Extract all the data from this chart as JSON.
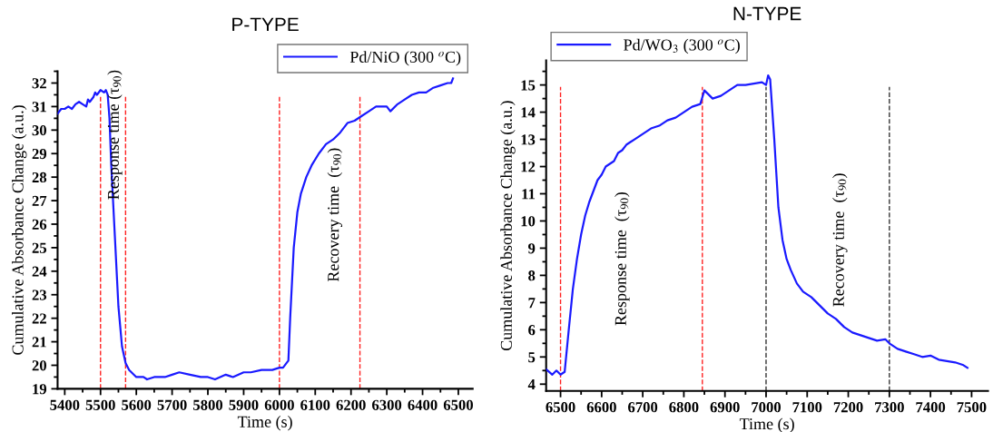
{
  "chart_data": [
    {
      "type": "line",
      "title": "P-TYPE",
      "xlabel": "Time (s)",
      "ylabel": "Cumulative Absorbance Change (a.u.)",
      "xlim": [
        5380,
        6540
      ],
      "xticks": [
        5400,
        5500,
        5600,
        5700,
        5800,
        5900,
        6000,
        6100,
        6200,
        6300,
        6400,
        6500
      ],
      "ylim": [
        19,
        32.5
      ],
      "yticks": [
        19,
        20,
        21,
        22,
        23,
        24,
        25,
        26,
        27,
        28,
        29,
        30,
        31,
        32
      ],
      "legend": "top right",
      "grid": false,
      "line_style": "solid",
      "marker": "none",
      "series": [
        {
          "name": "Pd/NiO (300 $^{o}$C)",
          "color": "#1a1aff",
          "x": [
            5380,
            5390,
            5400,
            5410,
            5420,
            5430,
            5440,
            5450,
            5460,
            5465,
            5470,
            5480,
            5485,
            5490,
            5500,
            5510,
            5515,
            5520,
            5525,
            5530,
            5540,
            5550,
            5560,
            5570,
            5580,
            5600,
            5620,
            5630,
            5650,
            5680,
            5700,
            5720,
            5750,
            5780,
            5800,
            5820,
            5850,
            5870,
            5900,
            5920,
            5950,
            5980,
            6000,
            6010,
            6020,
            6025,
            6030,
            6040,
            6050,
            6060,
            6075,
            6090,
            6110,
            6130,
            6150,
            6170,
            6190,
            6210,
            6230,
            6250,
            6270,
            6300,
            6310,
            6330,
            6350,
            6370,
            6390,
            6410,
            6430,
            6450,
            6470,
            6480,
            6485
          ],
          "values": [
            30.7,
            30.9,
            30.9,
            31.0,
            30.9,
            31.1,
            31.2,
            31.1,
            31.0,
            31.3,
            31.2,
            31.4,
            31.6,
            31.5,
            31.7,
            31.6,
            31.7,
            31.5,
            30.5,
            28.5,
            25.5,
            22.5,
            20.8,
            20.1,
            19.8,
            19.5,
            19.5,
            19.4,
            19.5,
            19.5,
            19.6,
            19.7,
            19.6,
            19.5,
            19.5,
            19.4,
            19.6,
            19.5,
            19.7,
            19.7,
            19.8,
            19.8,
            19.9,
            19.9,
            20.1,
            20.2,
            22.0,
            25.0,
            26.5,
            27.3,
            28.0,
            28.5,
            29.0,
            29.4,
            29.6,
            29.9,
            30.3,
            30.4,
            30.6,
            30.8,
            31.0,
            31.0,
            30.8,
            31.1,
            31.3,
            31.5,
            31.6,
            31.6,
            31.8,
            31.9,
            32.0,
            32.0,
            32.2
          ]
        }
      ],
      "ref_lines": [
        {
          "axis": "x",
          "value": 5500,
          "color": "#ff2020",
          "line_style": "dashed"
        },
        {
          "axis": "x",
          "value": 5570,
          "color": "#ff2020",
          "line_style": "dashed"
        },
        {
          "axis": "x",
          "value": 6000,
          "color": "#ff2020",
          "line_style": "dashed"
        },
        {
          "axis": "x",
          "value": 6225,
          "color": "#ff2020",
          "line_style": "dashed"
        }
      ],
      "annotations": [
        "Response time (τ$_{90}$)",
        "Recovery time  (τ$_{90}$)"
      ]
    },
    {
      "type": "line",
      "title": "N-TYPE",
      "xlabel": "Time (s)",
      "ylabel": "Cumulative Absorbance Change (a.u.)",
      "xlim": [
        6465,
        7540
      ],
      "xticks": [
        6500,
        6600,
        6700,
        6800,
        6900,
        7000,
        7100,
        7200,
        7300,
        7400,
        7500
      ],
      "ylim": [
        3.75,
        15.9
      ],
      "yticks": [
        4,
        5,
        6,
        7,
        8,
        9,
        10,
        11,
        12,
        13,
        14,
        15
      ],
      "legend": "top left",
      "grid": false,
      "line_style": "solid",
      "marker": "none",
      "series": [
        {
          "name": "Pd/WO$_{3}$ (300 $^{o}$C)",
          "color": "#1a1aff",
          "x": [
            6465,
            6480,
            6490,
            6500,
            6510,
            6520,
            6530,
            6540,
            6550,
            6560,
            6570,
            6580,
            6590,
            6600,
            6610,
            6620,
            6630,
            6640,
            6650,
            6660,
            6670,
            6680,
            6700,
            6720,
            6740,
            6760,
            6780,
            6800,
            6820,
            6840,
            6850,
            6870,
            6890,
            6910,
            6930,
            6950,
            6970,
            6990,
            7000,
            7005,
            7010,
            7020,
            7030,
            7040,
            7050,
            7060,
            7075,
            7090,
            7110,
            7130,
            7150,
            7170,
            7190,
            7210,
            7230,
            7250,
            7270,
            7290,
            7300,
            7320,
            7340,
            7360,
            7380,
            7400,
            7420,
            7440,
            7460,
            7480,
            7490
          ],
          "values": [
            4.55,
            4.35,
            4.5,
            4.35,
            4.45,
            6.0,
            7.5,
            8.6,
            9.5,
            10.2,
            10.7,
            11.1,
            11.5,
            11.7,
            12.0,
            12.1,
            12.2,
            12.5,
            12.6,
            12.8,
            12.9,
            13.0,
            13.2,
            13.4,
            13.5,
            13.7,
            13.8,
            14.0,
            14.2,
            14.3,
            14.8,
            14.5,
            14.6,
            14.8,
            15.0,
            15.0,
            15.05,
            15.1,
            15.0,
            15.35,
            15.2,
            13.0,
            10.5,
            9.3,
            8.6,
            8.2,
            7.7,
            7.4,
            7.2,
            6.9,
            6.6,
            6.4,
            6.1,
            5.9,
            5.8,
            5.7,
            5.6,
            5.65,
            5.5,
            5.3,
            5.2,
            5.1,
            5.0,
            5.05,
            4.9,
            4.85,
            4.8,
            4.7,
            4.6
          ]
        }
      ],
      "ref_lines": [
        {
          "axis": "x",
          "value": 6500,
          "color": "#ff2020",
          "line_style": "dashed"
        },
        {
          "axis": "x",
          "value": 6845,
          "color": "#ff2020",
          "line_style": "dashed"
        },
        {
          "axis": "x",
          "value": 7000,
          "color": "#333333",
          "line_style": "dashed"
        },
        {
          "axis": "x",
          "value": 7300,
          "color": "#333333",
          "line_style": "dashed"
        }
      ],
      "annotations": [
        "Response time  (τ$_{90}$)",
        "Recovery time  (τ$_{90}$)"
      ]
    }
  ]
}
